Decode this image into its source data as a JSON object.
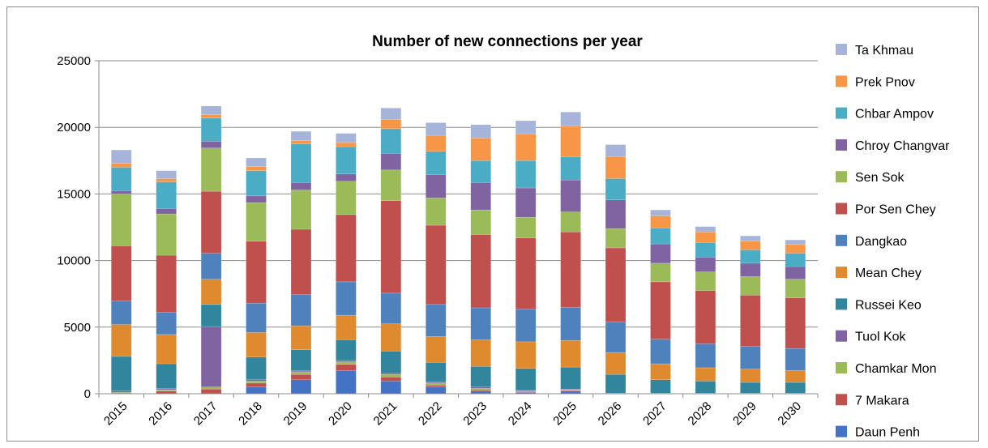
{
  "chart_data": {
    "type": "bar",
    "stacked": true,
    "title": "Number of new connections per year",
    "xlabel": "",
    "ylabel": "",
    "ylim": [
      0,
      25000
    ],
    "yticks": [
      0,
      5000,
      10000,
      15000,
      20000,
      25000
    ],
    "grid": true,
    "legend_position": "right",
    "categories": [
      "2015",
      "2016",
      "2017",
      "2018",
      "2019",
      "2020",
      "2021",
      "2022",
      "2023",
      "2024",
      "2025",
      "2026",
      "2027",
      "2028",
      "2029",
      "2030"
    ],
    "series": [
      {
        "name": "Daun Penh",
        "color": "#4472C4",
        "values": [
          0,
          0,
          0,
          500,
          1050,
          1750,
          950,
          500,
          200,
          100,
          200,
          0,
          0,
          0,
          0,
          0
        ]
      },
      {
        "name": "7 Makara",
        "color": "#C0504D",
        "values": [
          0,
          200,
          350,
          300,
          400,
          450,
          300,
          150,
          100,
          50,
          50,
          0,
          0,
          0,
          0,
          0
        ]
      },
      {
        "name": "Chamkar Mon",
        "color": "#9BBB59",
        "values": [
          100,
          100,
          150,
          150,
          200,
          200,
          200,
          150,
          100,
          50,
          50,
          0,
          0,
          0,
          0,
          0
        ]
      },
      {
        "name": "Tuol Kok",
        "color": "#8064A2",
        "values": [
          100,
          100,
          4550,
          100,
          100,
          100,
          100,
          100,
          100,
          50,
          50,
          50,
          50,
          50,
          50,
          50
        ]
      },
      {
        "name": "Russei Keo",
        "color": "#31859C",
        "values": [
          2600,
          1850,
          1650,
          1700,
          1550,
          1550,
          1650,
          1450,
          1550,
          1650,
          1650,
          1400,
          1000,
          900,
          800,
          800
        ]
      },
      {
        "name": "Mean Chey",
        "color": "#E08A2F",
        "values": [
          2400,
          2200,
          1900,
          1850,
          1800,
          1850,
          2050,
          1950,
          2000,
          2000,
          2000,
          1650,
          1200,
          1000,
          1000,
          900
        ]
      },
      {
        "name": "Dangkao",
        "color": "#4F81BD",
        "values": [
          1750,
          1650,
          1950,
          2200,
          2350,
          2500,
          2300,
          2400,
          2400,
          2450,
          2500,
          2300,
          1850,
          1800,
          1700,
          1650
        ]
      },
      {
        "name": "Por Sen Chey",
        "color": "#C0504D",
        "values": [
          4150,
          4300,
          4650,
          4650,
          4900,
          5050,
          6950,
          5950,
          5500,
          5350,
          5650,
          5550,
          4300,
          4000,
          3850,
          3800
        ]
      },
      {
        "name": "Sen Sok",
        "color": "#9BBB59",
        "values": [
          3900,
          3100,
          3250,
          2900,
          2950,
          2500,
          2300,
          2050,
          1850,
          1550,
          1500,
          1450,
          1400,
          1400,
          1400,
          1400
        ]
      },
      {
        "name": "Chroy Changvar",
        "color": "#8064A2",
        "values": [
          250,
          400,
          500,
          500,
          550,
          550,
          1250,
          1750,
          2050,
          2200,
          2400,
          2150,
          1450,
          1100,
          1000,
          950
        ]
      },
      {
        "name": "Chbar Ampov",
        "color": "#4BACC6",
        "values": [
          1750,
          2000,
          1750,
          1900,
          2900,
          2050,
          1850,
          1750,
          1650,
          2050,
          1750,
          1600,
          1200,
          1100,
          1000,
          1000
        ]
      },
      {
        "name": "Prek Pnov",
        "color": "#F79646",
        "values": [
          300,
          250,
          250,
          300,
          250,
          300,
          700,
          1200,
          1700,
          2000,
          2300,
          1650,
          900,
          800,
          650,
          650
        ]
      },
      {
        "name": "Ta Khmau",
        "color": "#A5B4D8",
        "values": [
          1000,
          600,
          650,
          650,
          700,
          700,
          850,
          950,
          1000,
          1000,
          1050,
          900,
          450,
          400,
          400,
          350
        ]
      }
    ]
  }
}
